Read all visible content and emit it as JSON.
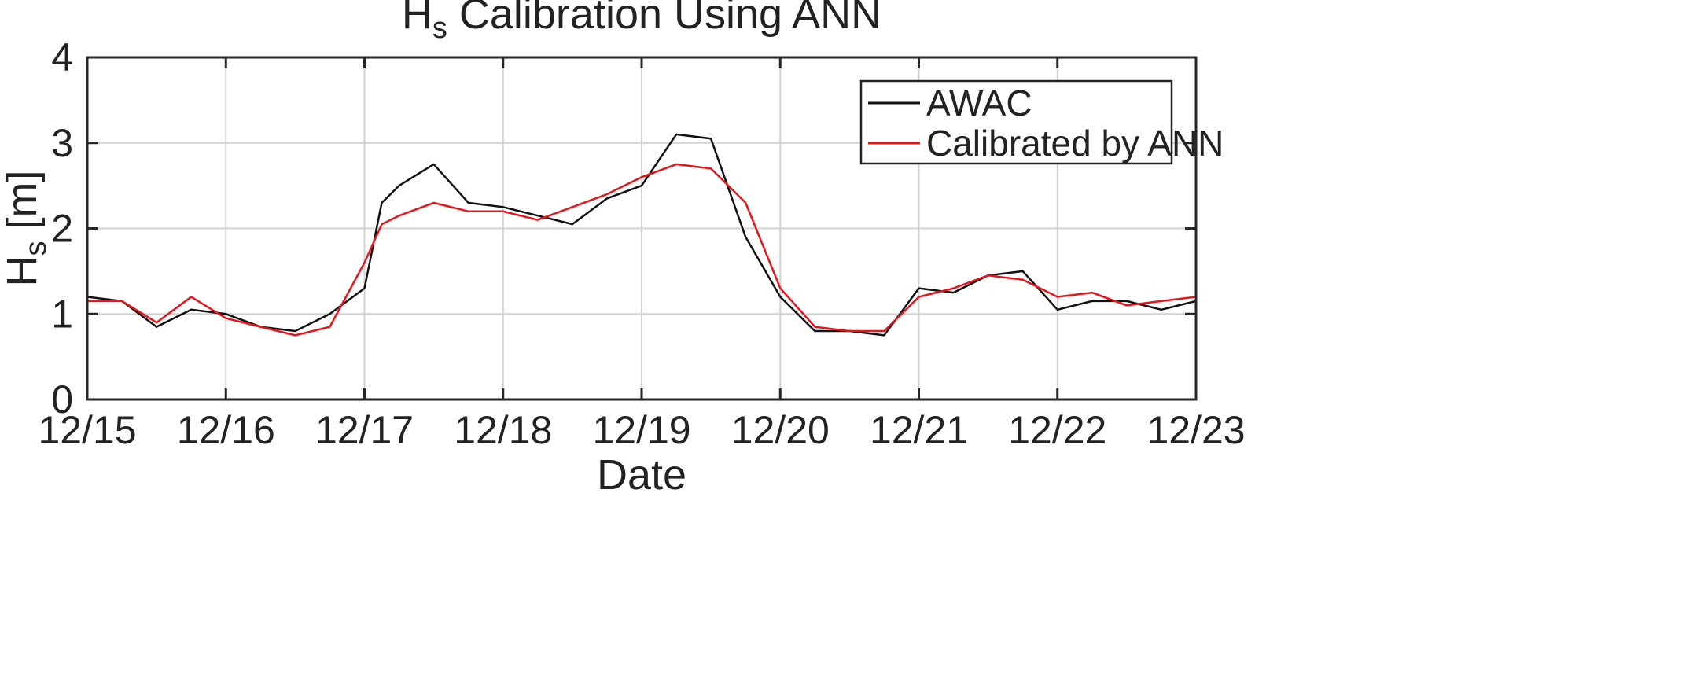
{
  "chart_data": {
    "type": "line",
    "title": "H",
    "title_subscript": "s",
    "title_rest": " Calibration Using ANN",
    "xlabel": "Date",
    "ylabel": "H",
    "ylabel_subscript": "s",
    "ylabel_unit": " [m]",
    "xlim": [
      "12/15",
      "12/23"
    ],
    "ylim": [
      0,
      4
    ],
    "xticks": [
      "12/15",
      "12/16",
      "12/17",
      "12/18",
      "12/19",
      "12/20",
      "12/21",
      "12/22",
      "12/23"
    ],
    "yticks": [
      "0",
      "1",
      "2",
      "3",
      "4"
    ],
    "grid": true,
    "legend_position": "top-right",
    "series": [
      {
        "name": "AWAC",
        "color": "#111111",
        "x": [
          "12/15 00:00",
          "12/15 06:00",
          "12/15 12:00",
          "12/15 18:00",
          "12/16 00:00",
          "12/16 06:00",
          "12/16 12:00",
          "12/16 18:00",
          "12/17 00:00",
          "12/17 03:00",
          "12/17 06:00",
          "12/17 12:00",
          "12/17 18:00",
          "12/18 00:00",
          "12/18 06:00",
          "12/18 12:00",
          "12/18 18:00",
          "12/19 00:00",
          "12/19 06:00",
          "12/19 12:00",
          "12/19 18:00",
          "12/20 00:00",
          "12/20 06:00",
          "12/20 12:00",
          "12/20 18:00",
          "12/21 00:00",
          "12/21 06:00",
          "12/21 12:00",
          "12/21 18:00",
          "12/22 00:00",
          "12/22 06:00",
          "12/22 12:00",
          "12/22 18:00",
          "12/23 00:00"
        ],
        "y": [
          1.2,
          1.15,
          0.85,
          1.05,
          1.0,
          0.85,
          0.8,
          1.0,
          1.3,
          2.3,
          2.5,
          2.75,
          2.3,
          2.25,
          2.15,
          2.05,
          2.35,
          2.5,
          3.1,
          3.05,
          1.9,
          1.2,
          0.8,
          0.8,
          0.75,
          1.3,
          1.25,
          1.45,
          1.5,
          1.05,
          1.15,
          1.15,
          1.05,
          1.15
        ]
      },
      {
        "name": "Calibrated by ANN",
        "color": "#e8141c",
        "x": [
          "12/15 00:00",
          "12/15 06:00",
          "12/15 12:00",
          "12/15 18:00",
          "12/16 00:00",
          "12/16 06:00",
          "12/16 12:00",
          "12/16 18:00",
          "12/17 00:00",
          "12/17 03:00",
          "12/17 06:00",
          "12/17 12:00",
          "12/17 18:00",
          "12/18 00:00",
          "12/18 06:00",
          "12/18 12:00",
          "12/18 18:00",
          "12/19 00:00",
          "12/19 06:00",
          "12/19 12:00",
          "12/19 18:00",
          "12/20 00:00",
          "12/20 06:00",
          "12/20 12:00",
          "12/20 18:00",
          "12/21 00:00",
          "12/21 06:00",
          "12/21 12:00",
          "12/21 18:00",
          "12/22 00:00",
          "12/22 06:00",
          "12/22 12:00",
          "12/22 18:00",
          "12/23 00:00"
        ],
        "y": [
          1.15,
          1.15,
          0.9,
          1.2,
          0.95,
          0.85,
          0.75,
          0.85,
          1.6,
          2.05,
          2.15,
          2.3,
          2.2,
          2.2,
          2.1,
          2.25,
          2.4,
          2.6,
          2.75,
          2.7,
          2.3,
          1.3,
          0.85,
          0.8,
          0.8,
          1.2,
          1.3,
          1.45,
          1.4,
          1.2,
          1.25,
          1.1,
          1.15,
          1.2
        ]
      }
    ]
  }
}
